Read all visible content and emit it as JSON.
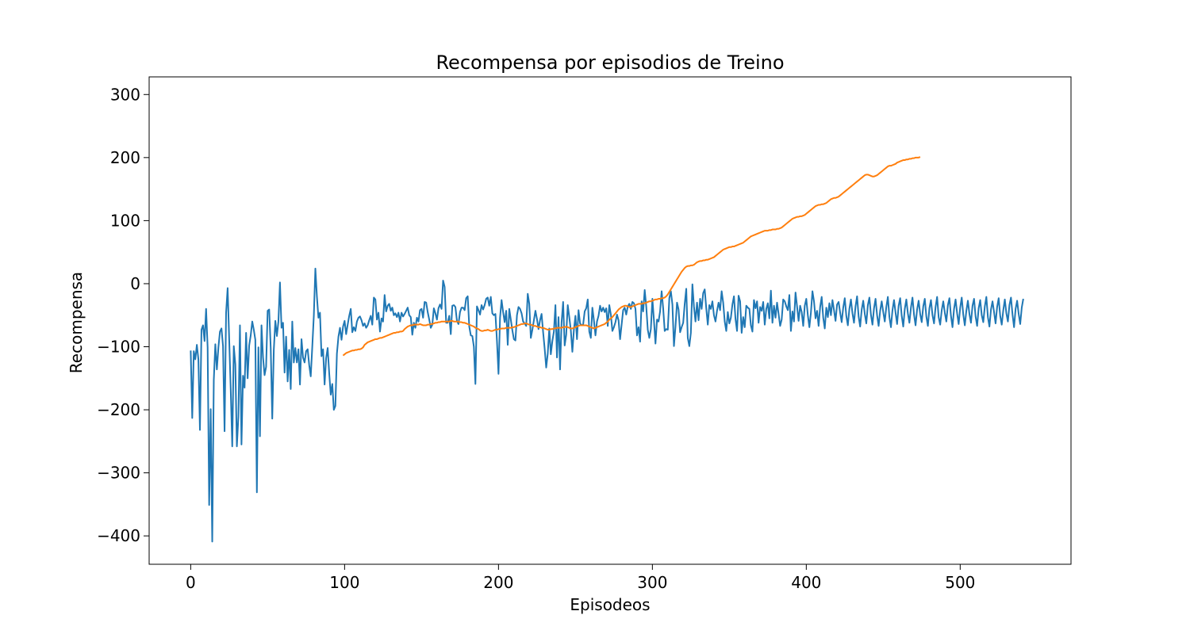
{
  "chart_data": {
    "type": "line",
    "title": "Recompensa por episodios de Treino",
    "xlabel": "Episodeos",
    "ylabel": "Recompensa",
    "xlim": [
      -27,
      572
    ],
    "ylim": [
      -445,
      328
    ],
    "xticks": [
      0,
      100,
      200,
      300,
      400,
      500
    ],
    "yticks": [
      -400,
      -300,
      -200,
      -100,
      0,
      100,
      200,
      300
    ],
    "xtick_labels": [
      "0",
      "100",
      "200",
      "300",
      "400",
      "500"
    ],
    "ytick_labels": [
      "−400",
      "−300",
      "−200",
      "−100",
      "0",
      "100",
      "200",
      "300"
    ],
    "grid": false,
    "legend": null,
    "series": [
      {
        "color": "#1f77b4",
        "x_start": 0,
        "x_step": 1,
        "values": [
          -106,
          -213,
          -107,
          -120,
          -97,
          -120,
          -232,
          -73,
          -66,
          -91,
          -40,
          -101,
          -351,
          -199,
          -409,
          -153,
          -96,
          -136,
          -101,
          -76,
          -71,
          -99,
          -234,
          -46,
          -7,
          -87,
          -167,
          -258,
          -99,
          -128,
          -258,
          -211,
          -66,
          -255,
          -146,
          -165,
          -78,
          -150,
          -98,
          -82,
          -60,
          -73,
          -89,
          -331,
          -101,
          -242,
          -66,
          -117,
          -145,
          -132,
          -43,
          -41,
          -102,
          -214,
          -105,
          -59,
          -83,
          -60,
          2,
          -70,
          -62,
          -141,
          -84,
          -155,
          -105,
          -167,
          -60,
          -125,
          -102,
          -125,
          -104,
          -160,
          -88,
          -117,
          -125,
          -107,
          -104,
          -129,
          -147,
          -100,
          -51,
          24,
          -20,
          -54,
          -46,
          -115,
          -104,
          -160,
          -118,
          -102,
          -142,
          -176,
          -159,
          -200,
          -194,
          -111,
          -84,
          -70,
          -89,
          -68,
          -59,
          -80,
          -65,
          -51,
          -40,
          -77,
          -69,
          -75,
          -60,
          -54,
          -52,
          -58,
          -67,
          -63,
          -70,
          -66,
          -58,
          -51,
          -65,
          -22,
          -25,
          -57,
          -46,
          -76,
          -55,
          -60,
          -18,
          -44,
          -35,
          -32,
          -43,
          -38,
          -50,
          -47,
          -53,
          -46,
          -60,
          -46,
          -52,
          -48,
          -43,
          -38,
          -50,
          -53,
          -81,
          -62,
          -70,
          -54,
          -60,
          -42,
          -40,
          -54,
          -29,
          -30,
          -45,
          -57,
          -70,
          -65,
          -39,
          -47,
          -57,
          -39,
          -33,
          -40,
          5,
          -5,
          -62,
          -62,
          -51,
          -80,
          -35,
          -34,
          -37,
          -59,
          -64,
          -45,
          -38,
          -38,
          -42,
          -23,
          -20,
          -68,
          -82,
          -83,
          -100,
          -159,
          -36,
          -42,
          -49,
          -34,
          -41,
          -34,
          -24,
          -22,
          -35,
          -21,
          -47,
          -50,
          -48,
          -91,
          -143,
          -54,
          -26,
          -45,
          -61,
          -43,
          -97,
          -40,
          -57,
          -74,
          -88,
          -90,
          -50,
          -37,
          -40,
          -47,
          -60,
          -63,
          -67,
          -16,
          -32,
          -86,
          -73,
          -58,
          -43,
          -56,
          -72,
          -58,
          -48,
          -77,
          -103,
          -133,
          -111,
          -71,
          -112,
          -91,
          -76,
          -34,
          -117,
          -53,
          -136,
          -61,
          -29,
          -98,
          -81,
          -34,
          -53,
          -74,
          -108,
          -73,
          -51,
          -88,
          -42,
          -63,
          -66,
          -65,
          -44,
          -39,
          -25,
          -76,
          -86,
          -38,
          -58,
          -82,
          -60,
          -51,
          -35,
          -44,
          -38,
          -45,
          -39,
          -67,
          -34,
          -49,
          -75,
          -69,
          -61,
          -49,
          -58,
          -88,
          -65,
          -42,
          -38,
          -49,
          -36,
          -32,
          -40,
          -29,
          -31,
          -40,
          -82,
          -69,
          -92,
          -28,
          -44,
          -10,
          -36,
          -73,
          -86,
          -72,
          -24,
          -58,
          -95,
          -57,
          -60,
          -44,
          -12,
          -39,
          -75,
          -72,
          -73,
          -23,
          -12,
          -33,
          -99,
          -68,
          -30,
          -41,
          -77,
          -69,
          -62,
          -32,
          -8,
          -86,
          -99,
          -78,
          -1,
          -36,
          -60,
          -30,
          -58,
          -24,
          -40,
          -15,
          -9,
          -39,
          -65,
          -34,
          -40,
          -28,
          -50,
          -60,
          -43,
          -30,
          -42,
          -12,
          -30,
          -60,
          -75,
          -45,
          -63,
          -54,
          -33,
          -20,
          -56,
          -75,
          -19,
          -28,
          -78,
          -53,
          -69,
          -35,
          -38,
          -40,
          -66,
          -76,
          -26,
          -39,
          -28,
          -62,
          -37,
          -43,
          -29,
          -65,
          -40,
          -31,
          -55,
          -11,
          -62,
          -35,
          -54,
          -30,
          -48,
          -67,
          -57,
          -25,
          -28,
          -36,
          -42,
          -18,
          -75,
          -44,
          -60,
          -14,
          -36,
          -59,
          -35,
          -45,
          -67,
          -35,
          -24,
          -50,
          -69,
          -46,
          -12,
          -28,
          -55,
          -43,
          -67,
          -37,
          -21,
          -54,
          -71,
          -38,
          -53,
          -31,
          -50,
          -26,
          -42,
          -59,
          -33,
          -29,
          -46,
          -61,
          -38,
          -23,
          -51,
          -66,
          -40,
          -25,
          -47,
          -62,
          -36,
          -20,
          -52,
          -68,
          -41,
          -27,
          -48,
          -63,
          -34,
          -22,
          -49,
          -65,
          -39,
          -24,
          -50,
          -67,
          -43,
          -28,
          -45,
          -60,
          -37,
          -21,
          -53,
          -69,
          -42,
          -26,
          -46,
          -64,
          -35,
          -23,
          -51,
          -68,
          -40,
          -25,
          -47,
          -62,
          -38,
          -22,
          -49,
          -66,
          -41,
          -27,
          -48,
          -61,
          -36,
          -24,
          -52,
          -67,
          -39,
          -26,
          -50,
          -63,
          -37,
          -21,
          -53,
          -65,
          -42,
          -28,
          -46,
          -60,
          -34,
          -23,
          -51,
          -69,
          -40,
          -25,
          -47,
          -64,
          -38,
          -22,
          -49,
          -66,
          -43,
          -27,
          -48,
          -62,
          -35,
          -24,
          -52,
          -67,
          -39,
          -26,
          -50,
          -61,
          -36,
          -21,
          -53,
          -68,
          -41,
          -28,
          -45,
          -63,
          -37,
          -23,
          -51,
          -65,
          -42,
          -25,
          -47,
          -60,
          -34,
          -22,
          -49,
          -69,
          -40,
          -27,
          -48,
          -64,
          -38,
          -24
        ]
      },
      {
        "color": "#ff7f0e",
        "x_start": 99,
        "x_step": 1,
        "values": [
          -114,
          -112,
          -110,
          -109,
          -108,
          -107,
          -106,
          -106,
          -105,
          -105,
          -104,
          -104,
          -103,
          -101,
          -97,
          -95,
          -93,
          -92,
          -91,
          -90,
          -89,
          -88,
          -88,
          -87,
          -86,
          -86,
          -85,
          -84,
          -83,
          -82,
          -81,
          -80,
          -79,
          -78,
          -78,
          -77,
          -77,
          -76,
          -76,
          -75,
          -72,
          -70,
          -68,
          -67,
          -66,
          -66,
          -65,
          -65,
          -65,
          -65,
          -64,
          -65,
          -66,
          -66,
          -66,
          -65,
          -65,
          -64,
          -64,
          -63,
          -62,
          -62,
          -61,
          -61,
          -60,
          -60,
          -60,
          -60,
          -60,
          -60,
          -59,
          -59,
          -60,
          -60,
          -60,
          -60,
          -61,
          -61,
          -62,
          -62,
          -63,
          -64,
          -65,
          -66,
          -67,
          -68,
          -70,
          -71,
          -72,
          -74,
          -75,
          -75,
          -74,
          -74,
          -73,
          -74,
          -75,
          -75,
          -74,
          -73,
          -73,
          -72,
          -72,
          -71,
          -71,
          -71,
          -70,
          -70,
          -70,
          -70,
          -69,
          -69,
          -68,
          -67,
          -66,
          -65,
          -64,
          -64,
          -63,
          -63,
          -64,
          -65,
          -65,
          -66,
          -67,
          -67,
          -68,
          -69,
          -69,
          -70,
          -70,
          -71,
          -72,
          -73,
          -73,
          -72,
          -72,
          -71,
          -71,
          -70,
          -70,
          -70,
          -70,
          -69,
          -69,
          -68,
          -69,
          -70,
          -71,
          -71,
          -70,
          -69,
          -68,
          -67,
          -66,
          -66,
          -66,
          -66,
          -66,
          -67,
          -68,
          -69,
          -70,
          -71,
          -70,
          -69,
          -68,
          -67,
          -66,
          -65,
          -64,
          -62,
          -60,
          -57,
          -55,
          -53,
          -50,
          -47,
          -44,
          -41,
          -39,
          -37,
          -36,
          -35,
          -35,
          -36,
          -37,
          -37,
          -36,
          -35,
          -34,
          -33,
          -32,
          -32,
          -32,
          -31,
          -31,
          -30,
          -29,
          -28,
          -28,
          -27,
          -26,
          -25,
          -25,
          -24,
          -24,
          -23,
          -23,
          -22,
          -20,
          -17,
          -13,
          -9,
          -5,
          -1,
          3,
          7,
          11,
          15,
          19,
          22,
          25,
          27,
          28,
          28,
          29,
          29,
          30,
          32,
          34,
          35,
          36,
          36,
          37,
          37,
          38,
          38,
          39,
          40,
          41,
          42,
          44,
          46,
          48,
          50,
          52,
          54,
          55,
          56,
          57,
          58,
          58,
          59,
          59,
          60,
          61,
          62,
          63,
          64,
          65,
          67,
          69,
          71,
          73,
          75,
          76,
          77,
          78,
          79,
          80,
          81,
          82,
          83,
          84,
          84,
          84,
          85,
          85,
          86,
          86,
          86,
          87,
          87,
          88,
          89,
          91,
          93,
          95,
          97,
          99,
          101,
          103,
          104,
          105,
          106,
          106,
          107,
          107,
          108,
          109,
          111,
          113,
          115,
          117,
          119,
          121,
          123,
          124,
          125,
          125,
          126,
          126,
          127,
          128,
          130,
          132,
          134,
          135,
          136,
          136,
          137,
          138,
          140,
          142,
          144,
          146,
          148,
          150,
          152,
          154,
          156,
          158,
          160,
          162,
          164,
          166,
          168,
          170,
          172,
          173,
          173,
          172,
          171,
          170,
          170,
          171,
          172,
          174,
          176,
          178,
          180,
          182,
          184,
          186,
          187,
          187,
          188,
          189,
          190,
          192,
          193,
          194,
          195,
          196,
          196,
          197,
          197,
          198,
          198,
          199,
          199,
          200,
          200,
          200,
          201
        ]
      }
    ]
  }
}
